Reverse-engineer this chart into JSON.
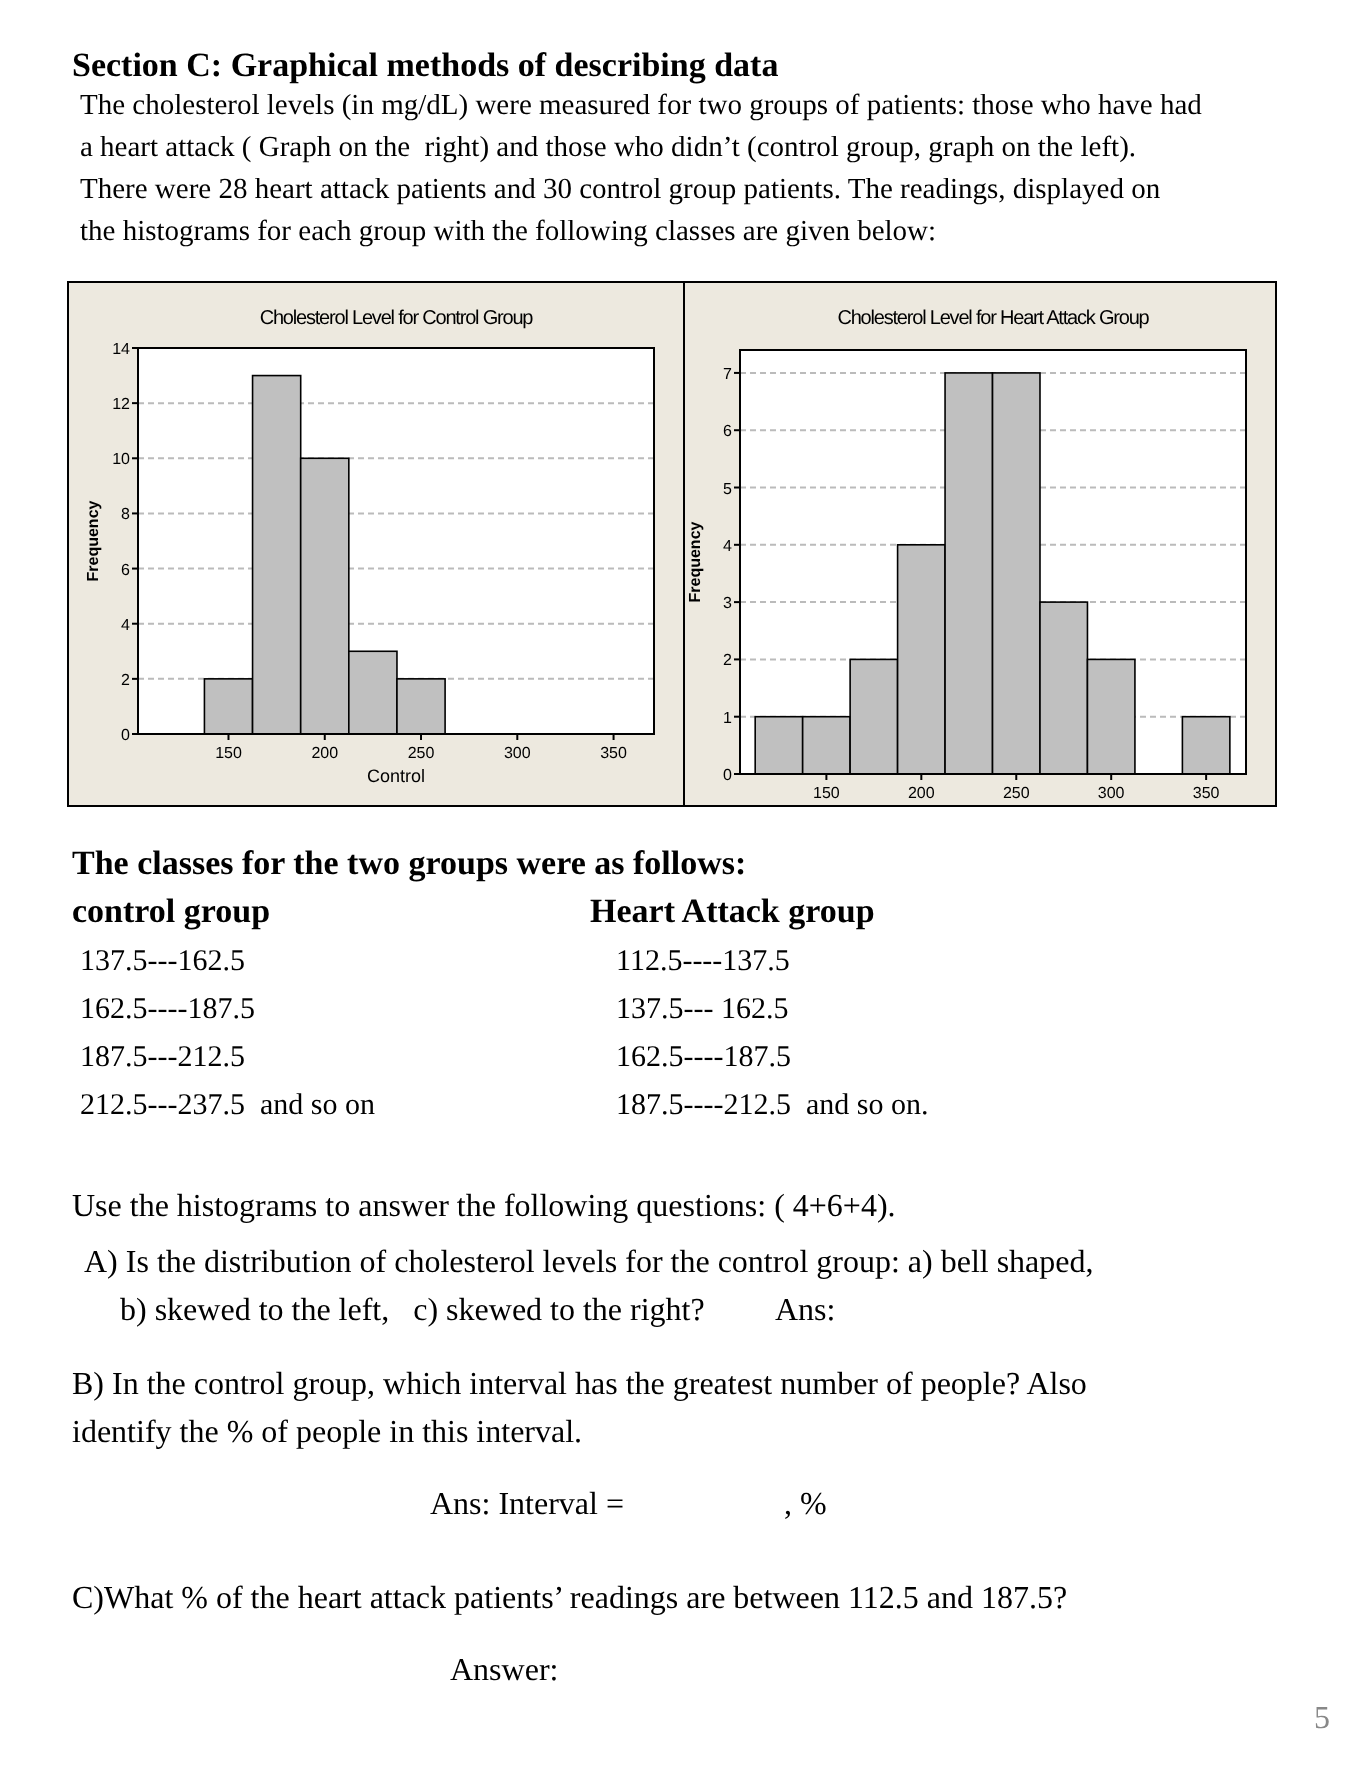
{
  "chart_data": [
    {
      "type": "other",
      "title": "Section C:  Graphical methods of describing data",
      "annotations": [
        "The cholesterol levels (in mg/dL) were measured for two groups of patients: those who have had",
        "a heart attack ( Graph on the  right) and those who didn’t (control group, graph on the left).",
        "There were 28 heart attack patients and 30 control group patients. The readings, displayed on",
        "the histograms for each group with the following classes are given below:"
      ]
    },
    {
      "type": "histogram",
      "title": "Cholesterol Level for Control Group",
      "xlabel": "Control",
      "ylabel": "Frequency",
      "bins": [
        137.5,
        162.5,
        187.5,
        212.5,
        237.5,
        262.5
      ],
      "values": [
        2,
        13,
        10,
        3,
        2
      ],
      "color": "#c0c0c0",
      "xlim": [
        103,
        371
      ],
      "xticks": [
        150,
        200,
        250,
        300,
        350
      ],
      "ylim": [
        0,
        14
      ],
      "yticks": [
        0,
        2,
        4,
        6,
        8,
        10,
        12,
        14
      ],
      "grid": "y"
    },
    {
      "type": "histogram",
      "title": "Cholesterol Level for Heart Attack Group",
      "ylabel": "Frequency",
      "bins": [
        112.5,
        137.5,
        162.5,
        187.5,
        212.5,
        237.5,
        262.5,
        287.5,
        312.5,
        337.5,
        362.5
      ],
      "values": [
        1,
        1,
        2,
        4,
        7,
        7,
        3,
        2,
        0,
        1
      ],
      "color": "#c0c0c0",
      "xlim": [
        104.5,
        371
      ],
      "xticks": [
        150,
        200,
        250,
        300,
        350
      ],
      "ylim": [
        0,
        7.4
      ],
      "yticks": [
        0,
        1,
        2,
        3,
        4,
        5,
        6,
        7
      ],
      "grid": "y"
    },
    {
      "type": "other",
      "title": "The classes for the two groups were as follows:"
    },
    {
      "type": "other",
      "title": "control group",
      "annotations": [
        "137.5---162.5",
        "162.5----187.5",
        "187.5---212.5",
        "212.5---237.5  and so on"
      ]
    },
    {
      "type": "other",
      "title": "Heart Attack group",
      "annotations": [
        "112.5----137.5",
        "137.5--- 162.5",
        "162.5----187.5",
        "187.5----212.5  and so on."
      ]
    },
    {
      "type": "other",
      "annotations": [
        "Use the histograms to answer the following questions: ( 4+6+4).",
        "A) Is the distribution of cholesterol levels for the control group: a) bell shaped,",
        "b) skewed to the left,   c) skewed to the right?         Ans:",
        "B) In the control group, which interval has the greatest number of people? Also",
        "identify the % of people in this interval.",
        "Ans: Interval =                    , %",
        "C)What % of the heart attack patients’ readings are between 112.5 and 187.5?",
        "Answer:",
        "5"
      ]
    }
  ]
}
